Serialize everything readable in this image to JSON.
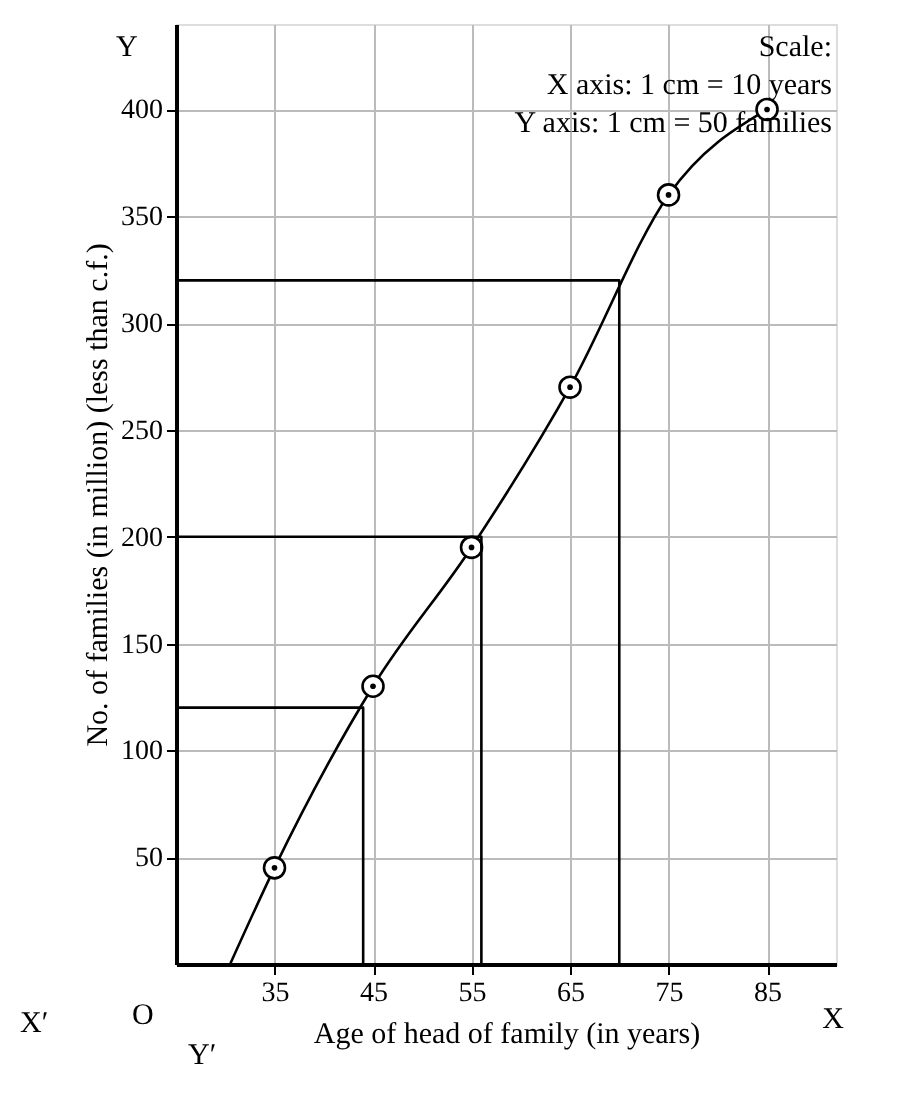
{
  "chart_data": {
    "type": "line",
    "xlabel": "Age of head of family (in years)",
    "ylabel": "No. of families (in million) (less than c.f.)",
    "xlim": [
      25,
      92
    ],
    "ylim": [
      0,
      440
    ],
    "xticks": [
      35,
      45,
      55,
      65,
      75,
      85
    ],
    "yticks": [
      50,
      100,
      150,
      200,
      250,
      300,
      350,
      400
    ],
    "grid": true,
    "annotations": [
      "Scale:\nX axis: 1 cm = 10 years\nY axis: 1 cm = 50 families",
      "O",
      "X",
      "X′",
      "Y",
      "Y′"
    ],
    "series": [
      {
        "color": "#000000",
        "marker": "none",
        "x": [
          30.5,
          35,
          45,
          55,
          65,
          75,
          85
        ],
        "values": [
          0,
          45,
          130,
          195,
          270,
          360,
          400
        ]
      },
      {
        "type": "scatter",
        "color": "#000000",
        "marker": "circle",
        "x": [
          35,
          45,
          55,
          65,
          75,
          85
        ],
        "values": [
          45,
          130,
          195,
          270,
          360,
          400
        ]
      },
      {
        "type": "line",
        "color": "#000000",
        "marker": "none",
        "x": [
          25,
          44,
          44
        ],
        "values": [
          120,
          120,
          0
        ]
      },
      {
        "type": "line",
        "color": "#000000",
        "marker": "none",
        "x": [
          25,
          56,
          56
        ],
        "values": [
          200,
          200,
          0
        ]
      },
      {
        "type": "line",
        "color": "#000000",
        "marker": "none",
        "x": [
          25,
          70,
          70
        ],
        "values": [
          320,
          320,
          0
        ]
      }
    ]
  }
}
